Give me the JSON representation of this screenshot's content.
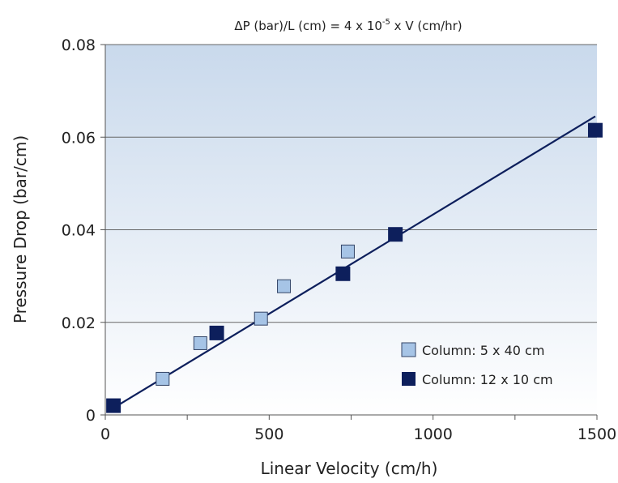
{
  "chart_data": {
    "type": "scatter",
    "title": "ΔP (bar)/L (cm) = 4 x 10-5 x V (cm/hr)",
    "title_parts": {
      "before": "ΔP (bar)/L (cm) = 4 x 10",
      "exponent": "-5",
      "after": " x V (cm/hr)"
    },
    "xlabel": "Linear Velocity (cm/h)",
    "ylabel": "Pressure Drop (bar/cm)",
    "xlim": [
      0,
      1500
    ],
    "ylim": [
      0,
      0.08
    ],
    "x_ticks": [
      0,
      500,
      1000,
      1500
    ],
    "x_tick_labels": [
      "0",
      "500",
      "1000",
      "1500"
    ],
    "x_minor_ticks": [
      250,
      750,
      1250
    ],
    "y_ticks": [
      0,
      0.02,
      0.04,
      0.06,
      0.08
    ],
    "y_tick_labels": [
      "0",
      "0.02",
      "0.04",
      "0.06",
      "0.08"
    ],
    "grid": "horizontal",
    "legend_position": "bottom-right",
    "background_gradient": [
      "#c9d9ec",
      "#ffffff"
    ],
    "series": [
      {
        "name": "Column: 5 x 40 cm",
        "color": "#a6c4e6",
        "marker": "square",
        "points": [
          {
            "x": 175,
            "y": 0.0078
          },
          {
            "x": 290,
            "y": 0.0155
          },
          {
            "x": 475,
            "y": 0.0208
          },
          {
            "x": 545,
            "y": 0.0278
          },
          {
            "x": 740,
            "y": 0.0353
          }
        ]
      },
      {
        "name": "Column: 12 x 10 cm",
        "color": "#0d1f5c",
        "marker": "square",
        "points": [
          {
            "x": 25,
            "y": 0.002
          },
          {
            "x": 340,
            "y": 0.0177
          },
          {
            "x": 725,
            "y": 0.0305
          },
          {
            "x": 885,
            "y": 0.039
          },
          {
            "x": 1495,
            "y": 0.0615
          }
        ]
      }
    ],
    "trendline": {
      "color": "#0d1f5c",
      "from": {
        "x": 25,
        "y": 0.0015
      },
      "to": {
        "x": 1495,
        "y": 0.0645
      }
    }
  }
}
